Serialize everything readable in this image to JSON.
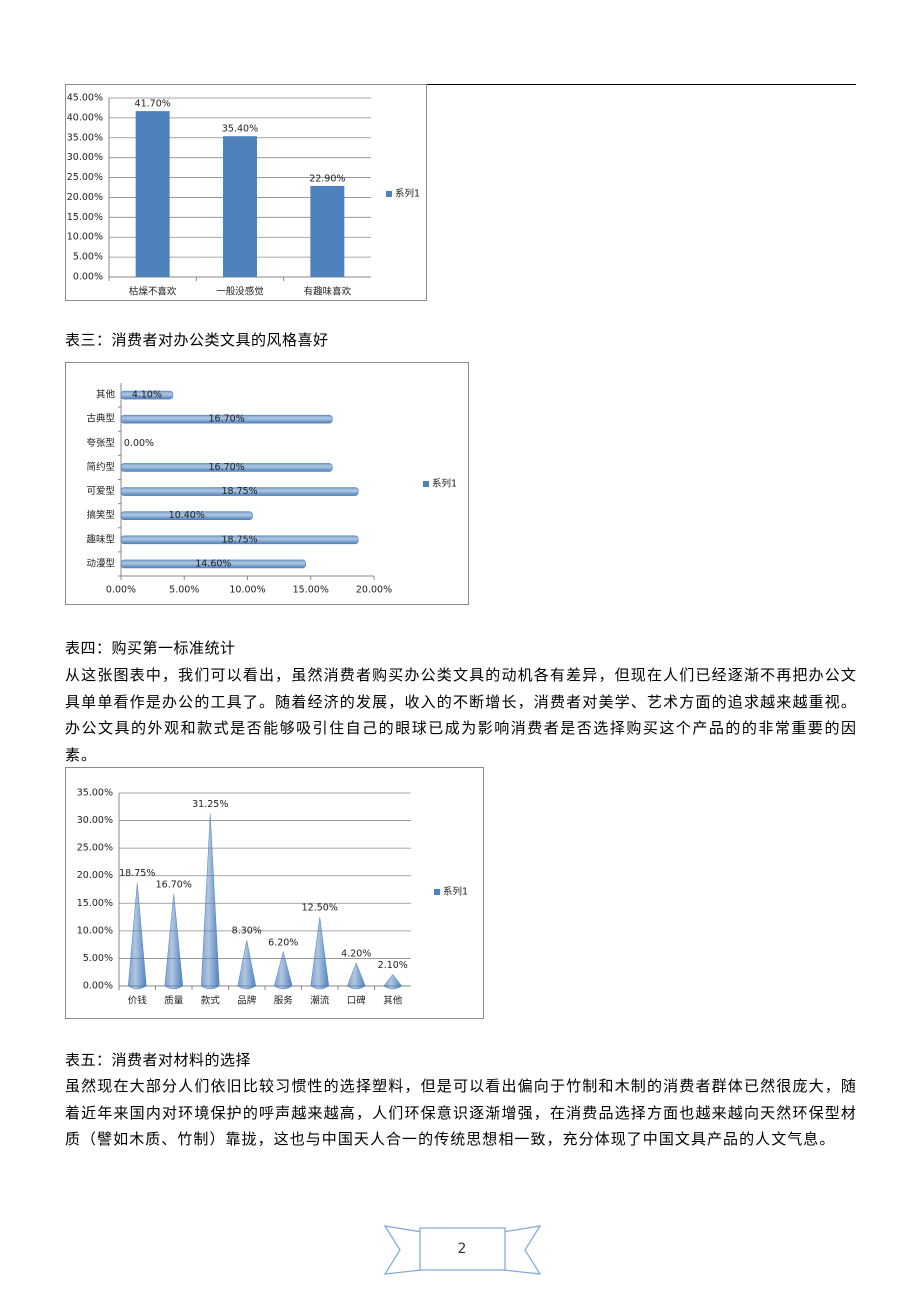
{
  "chart_data": [
    {
      "type": "bar",
      "categories": [
        "枯燥不喜欢",
        "一般没感觉",
        "有趣味喜欢"
      ],
      "series": [
        {
          "name": "系列1",
          "color": "#4f81bd",
          "values": [
            41.7,
            35.4,
            22.9
          ],
          "value_labels": [
            "41.70%",
            "35.40%",
            "22.90%"
          ]
        }
      ],
      "ylim": [
        0,
        45
      ],
      "yticks": [
        {
          "value": 0,
          "label": "0.00%"
        },
        {
          "value": 5,
          "label": "5.00%"
        },
        {
          "value": 10,
          "label": "10.00%"
        },
        {
          "value": 15,
          "label": "15.00%"
        },
        {
          "value": 20,
          "label": "20.00%"
        },
        {
          "value": 25,
          "label": "25.00%"
        },
        {
          "value": 30,
          "label": "30.00%"
        },
        {
          "value": 35,
          "label": "35.00%"
        },
        {
          "value": 40,
          "label": "40.00%"
        },
        {
          "value": 45,
          "label": "45.00%"
        }
      ],
      "grid": true,
      "legend": "right"
    },
    {
      "type": "hbar",
      "categories": [
        "其他",
        "古典型",
        "夸张型",
        "简约型",
        "可爱型",
        "搞笑型",
        "趣味型",
        "动漫型"
      ],
      "series": [
        {
          "name": "系列1",
          "color": "#4f81bd",
          "values": [
            4.1,
            16.7,
            0,
            16.7,
            18.75,
            10.4,
            18.75,
            14.6
          ],
          "value_labels": [
            "4.10%",
            "16.70%",
            "0.00%",
            "16.70%",
            "18.75%",
            "10.40%",
            "18.75%",
            "14.60%"
          ]
        }
      ],
      "xlim": [
        0,
        20
      ],
      "xticks": [
        {
          "value": 0,
          "label": "0.00%"
        },
        {
          "value": 5,
          "label": "5.00%"
        },
        {
          "value": 10,
          "label": "10.00%"
        },
        {
          "value": 15,
          "label": "15.00%"
        },
        {
          "value": 20,
          "label": "20.00%"
        }
      ],
      "grid": false,
      "legend": "right"
    },
    {
      "type": "cone",
      "categories": [
        "价钱",
        "质量",
        "款式",
        "品牌",
        "服务",
        "潮流",
        "口碑",
        "其他"
      ],
      "series": [
        {
          "name": "系列1",
          "color": "#4f81bd",
          "values": [
            18.75,
            16.7,
            31.25,
            8.3,
            6.2,
            12.5,
            4.2,
            2.1
          ],
          "value_labels": [
            "18.75%",
            "16.70%",
            "31.25%",
            "8.30%",
            "6.20%",
            "12.50%",
            "4.20%",
            "2.10%"
          ]
        }
      ],
      "ylim": [
        0,
        35
      ],
      "yticks": [
        {
          "value": 0,
          "label": "0.00%"
        },
        {
          "value": 5,
          "label": "5.00%"
        },
        {
          "value": 10,
          "label": "10.00%"
        },
        {
          "value": 15,
          "label": "15.00%"
        },
        {
          "value": 20,
          "label": "20.00%"
        },
        {
          "value": 25,
          "label": "25.00%"
        },
        {
          "value": 30,
          "label": "30.00%"
        },
        {
          "value": 35,
          "label": "35.00%"
        }
      ],
      "grid": true,
      "legend": "right"
    }
  ],
  "document": {
    "captions": [
      "表三：消费者对办公类文具的风格喜好",
      "表四：购买第一标准统计",
      "表五：消费者对材料的选择"
    ],
    "paragraphs": [
      "从这张图表中，我们可以看出，虽然消费者购买办公类文具的动机各有差异，但现在人们已经逐渐不再把办公文具单单看作是办公的工具了。随着经济的发展，收入的不断增长，消费者对美学、艺术方面的追求越来越重视。办公文具的外观和款式是否能够吸引住自己的眼球已成为影响消费者是否选择购买这个产品的的非常重要的因素。",
      "虽然现在大部分人们依旧比较习惯性的选择塑料，但是可以看出偏向于竹制和木制的消费者群体已然很庞大，随着近年来国内对环境保护的呼声越来越高，人们环保意识逐渐增强，在消费品选择方面也越来越向天然环保型材质（譬如木质、竹制）靠拢，这也与中国天人合一的传统思想相一致，充分体现了中国文具产品的人文气息。"
    ],
    "page_number": 2
  }
}
